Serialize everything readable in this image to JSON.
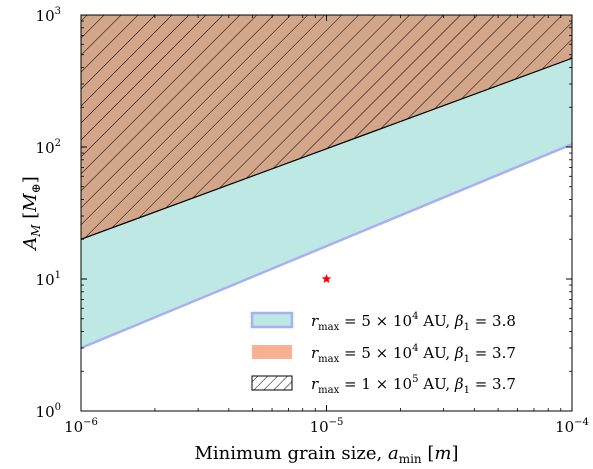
{
  "chart_data": {
    "type": "area",
    "xscale": "log",
    "yscale": "log",
    "xlim": [
      1e-06,
      0.0001
    ],
    "ylim": [
      1,
      1000
    ],
    "xlabel": "Minimum grain size, a_min [m]",
    "ylabel": "A_M [M_⊕]",
    "grid": false,
    "legend_position": "lower-right",
    "x_ticks": [
      {
        "value": 1e-06,
        "base": "10",
        "exp": "−6"
      },
      {
        "value": 1e-05,
        "base": "10",
        "exp": "−5"
      },
      {
        "value": 0.0001,
        "base": "10",
        "exp": "−4"
      }
    ],
    "y_ticks": [
      {
        "value": 1,
        "base": "10",
        "exp": "0"
      },
      {
        "value": 10,
        "base": "10",
        "exp": "1"
      },
      {
        "value": 100,
        "base": "10",
        "exp": "2"
      },
      {
        "value": 1000,
        "base": "10",
        "exp": "3"
      }
    ],
    "series": [
      {
        "name": "r_max = 5 × 10^4 AU, β1 = 3.8",
        "legend_math": {
          "r": "r",
          "sub": "max",
          "rest": " = 5 × 10",
          "sup": "4",
          "unit": " AU, ",
          "beta": "β",
          "bsub": "1",
          "bval": " = 3.8"
        },
        "kind": "band",
        "fill": "#bde8e3",
        "edge": "#a9b0f0",
        "x": [
          1e-06,
          0.0001
        ],
        "lower": [
          3.0,
          105
        ],
        "upper": [
          20,
          470
        ]
      },
      {
        "name": "r_max = 5 × 10^4 AU, β1 = 3.7",
        "legend_math": {
          "r": "r",
          "sub": "max",
          "rest": " = 5 × 10",
          "sup": "4",
          "unit": " AU, ",
          "beta": "β",
          "bsub": "1",
          "bval": " = 3.7"
        },
        "kind": "band",
        "fill": "#d3a589",
        "legend_fill": "#f9b193",
        "x": [
          1e-06,
          0.0001
        ],
        "lower": [
          20,
          470
        ],
        "upper": [
          1000,
          1000
        ]
      },
      {
        "name": "r_max = 1 × 10^5 AU, β1 = 3.7",
        "legend_math": {
          "r": "r",
          "sub": "max",
          "rest": " = 1 × 10",
          "sup": "5",
          "unit": " AU, ",
          "beta": "β",
          "bsub": "1",
          "bval": " = 3.7"
        },
        "kind": "hatched-band",
        "x": [
          1e-06,
          0.0001
        ],
        "lower": [
          20,
          470
        ],
        "upper": [
          1000,
          1000
        ]
      }
    ],
    "marker": {
      "x": 1e-05,
      "y": 10,
      "symbol": "star",
      "color": "#ff0000"
    }
  }
}
